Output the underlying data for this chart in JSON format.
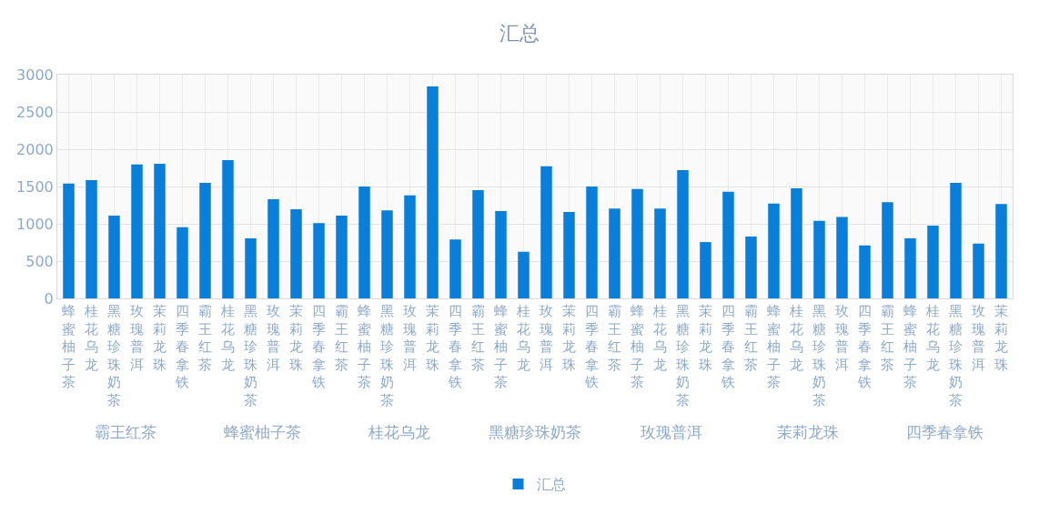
{
  "chart_data": {
    "type": "bar",
    "title": "汇总",
    "categories": [
      "蜂蜜柚子茶",
      "桂花乌龙",
      "黑糖珍珠奶茶",
      "玫瑰普洱",
      "茉莉龙珠",
      "四季春拿铁",
      "霸王红茶",
      "桂花乌龙",
      "黑糖珍珠奶茶",
      "玫瑰普洱",
      "茉莉龙珠",
      "四季春拿铁",
      "霸王红茶",
      "蜂蜜柚子茶",
      "黑糖珍珠奶茶",
      "玫瑰普洱",
      "茉莉龙珠",
      "四季春拿铁",
      "霸王红茶",
      "蜂蜜柚子茶",
      "桂花乌龙",
      "玫瑰普洱",
      "茉莉龙珠",
      "四季春拿铁",
      "霸王红茶",
      "蜂蜜柚子茶",
      "桂花乌龙",
      "黑糖珍珠奶茶",
      "茉莉龙珠",
      "四季春拿铁",
      "霸王红茶",
      "蜂蜜柚子茶",
      "桂花乌龙",
      "黑糖珍珠奶茶",
      "玫瑰普洱",
      "四季春拿铁",
      "霸王红茶",
      "蜂蜜柚子茶",
      "桂花乌龙",
      "黑糖珍珠奶茶",
      "玫瑰普洱",
      "茉莉龙珠"
    ],
    "series": [
      {
        "name": "汇总",
        "color": "#0a7fd9",
        "values": [
          1540,
          1585,
          1110,
          1795,
          1805,
          955,
          1550,
          1855,
          805,
          1330,
          1195,
          1010,
          1110,
          1500,
          1180,
          1380,
          2840,
          790,
          1450,
          1170,
          625,
          1770,
          1160,
          1500,
          1205,
          1465,
          1205,
          1720,
          755,
          1430,
          830,
          1270,
          1475,
          1040,
          1090,
          710,
          1290,
          805,
          975,
          1550,
          735,
          1265
        ]
      }
    ],
    "annotations": [
      "霸王红茶",
      "蜂蜜柚子茶",
      "桂花乌龙",
      "黑糖珍珠奶茶",
      "玫瑰普洱",
      "茉莉龙珠",
      "四季春拿铁"
    ],
    "ylim": [
      0,
      3000
    ],
    "yticks": [
      0,
      500,
      1000,
      1500,
      2000,
      2500,
      3000
    ],
    "grid": true,
    "legend": "bottom"
  }
}
